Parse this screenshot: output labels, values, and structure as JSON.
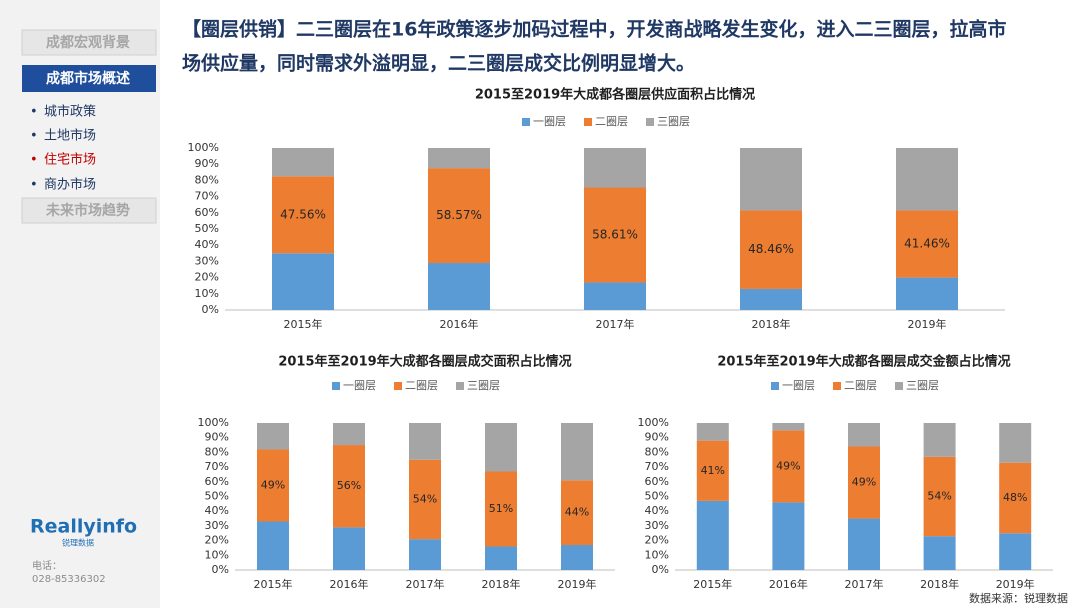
{
  "sidebar": {
    "items": [
      "成都宏观背景",
      "成都市场概述"
    ],
    "subitems": [
      "城市政策",
      "土地市场",
      "住宅市场",
      "商办市场"
    ],
    "last_item": "未来市场趋势",
    "logo": "Reallyinfo",
    "logo_sub": "锐理数据",
    "phone_label": "电话：",
    "phone": "028-85336302"
  },
  "headline": [
    "【圈层供销】二三圈层在16年政策逐步加码过程中，开发商战略发生变化，进入二三圈层，拉高市",
    "场供应量，同时需求外溢明显，二三圈层成交比例明显增大。"
  ],
  "source": "数据来源：锐理数据",
  "chart_data": [
    {
      "type": "stacked_bar",
      "title": "2015至2019年大成都各圈层供应面积占比情况",
      "legend": "top",
      "categories": [
        "2015年",
        "2016年",
        "2017年",
        "2018年",
        "2019年"
      ],
      "series": [
        {
          "name": "一圈层",
          "color": "#5b9bd5",
          "values": [
            35,
            29,
            17,
            13,
            20
          ]
        },
        {
          "name": "二圈层",
          "color": "#ed7d31",
          "values": [
            47.56,
            58.57,
            58.61,
            48.46,
            41.46
          ],
          "value_labels": [
            "47.56%",
            "58.57%",
            "58.61%",
            "48.46%",
            "41.46%"
          ]
        },
        {
          "name": "三圈层",
          "color": "#a5a5a5",
          "values": [
            17.44,
            12.43,
            24.39,
            38.54,
            38.54
          ]
        }
      ],
      "ylim": [
        0,
        100
      ],
      "yticks": [
        {
          "value": 0,
          "label": "0%"
        },
        {
          "value": 10,
          "label": "10%"
        },
        {
          "value": 20,
          "label": "20%"
        },
        {
          "value": 30,
          "label": "30%"
        },
        {
          "value": 40,
          "label": "40%"
        },
        {
          "value": 50,
          "label": "50%"
        },
        {
          "value": 60,
          "label": "60%"
        },
        {
          "value": 70,
          "label": "70%"
        },
        {
          "value": 80,
          "label": "80%"
        },
        {
          "value": 90,
          "label": "90%"
        },
        {
          "value": 100,
          "label": "100%"
        }
      ],
      "grid": false
    },
    {
      "type": "stacked_bar",
      "title": "2015年至2019年大成都各圈层成交面积占比情况",
      "legend": "top",
      "categories": [
        "2015年",
        "2016年",
        "2017年",
        "2018年",
        "2019年"
      ],
      "series": [
        {
          "name": "一圈层",
          "color": "#5b9bd5",
          "values": [
            33,
            29,
            21,
            16,
            17
          ]
        },
        {
          "name": "二圈层",
          "color": "#ed7d31",
          "values": [
            49,
            56,
            54,
            51,
            44
          ],
          "value_labels": [
            "49%",
            "56%",
            "54%",
            "51%",
            "44%"
          ]
        },
        {
          "name": "三圈层",
          "color": "#a5a5a5",
          "values": [
            18,
            15,
            25,
            33,
            39
          ]
        }
      ],
      "ylim": [
        0,
        100
      ],
      "yticks": [
        {
          "value": 0,
          "label": "0%"
        },
        {
          "value": 10,
          "label": "10%"
        },
        {
          "value": 20,
          "label": "20%"
        },
        {
          "value": 30,
          "label": "30%"
        },
        {
          "value": 40,
          "label": "40%"
        },
        {
          "value": 50,
          "label": "50%"
        },
        {
          "value": 60,
          "label": "60%"
        },
        {
          "value": 70,
          "label": "70%"
        },
        {
          "value": 80,
          "label": "80%"
        },
        {
          "value": 90,
          "label": "90%"
        },
        {
          "value": 100,
          "label": "100%"
        }
      ],
      "grid": false
    },
    {
      "type": "stacked_bar",
      "title": "2015年至2019年大成都各圈层成交金额占比情况",
      "legend": "top",
      "categories": [
        "2015年",
        "2016年",
        "2017年",
        "2018年",
        "2019年"
      ],
      "series": [
        {
          "name": "一圈层",
          "color": "#5b9bd5",
          "values": [
            47,
            46,
            35,
            23,
            25
          ]
        },
        {
          "name": "二圈层",
          "color": "#ed7d31",
          "values": [
            41,
            49,
            49,
            54,
            48
          ],
          "value_labels": [
            "41%",
            "49%",
            "49%",
            "54%",
            "48%"
          ]
        },
        {
          "name": "三圈层",
          "color": "#a5a5a5",
          "values": [
            12,
            5,
            16,
            23,
            27
          ]
        }
      ],
      "ylim": [
        0,
        100
      ],
      "yticks": [
        {
          "value": 0,
          "label": "0%"
        },
        {
          "value": 10,
          "label": "10%"
        },
        {
          "value": 20,
          "label": "20%"
        },
        {
          "value": 30,
          "label": "30%"
        },
        {
          "value": 40,
          "label": "40%"
        },
        {
          "value": 50,
          "label": "50%"
        },
        {
          "value": 60,
          "label": "60%"
        },
        {
          "value": 70,
          "label": "70%"
        },
        {
          "value": 80,
          "label": "80%"
        },
        {
          "value": 90,
          "label": "90%"
        },
        {
          "value": 100,
          "label": "100%"
        }
      ],
      "grid": false
    }
  ]
}
